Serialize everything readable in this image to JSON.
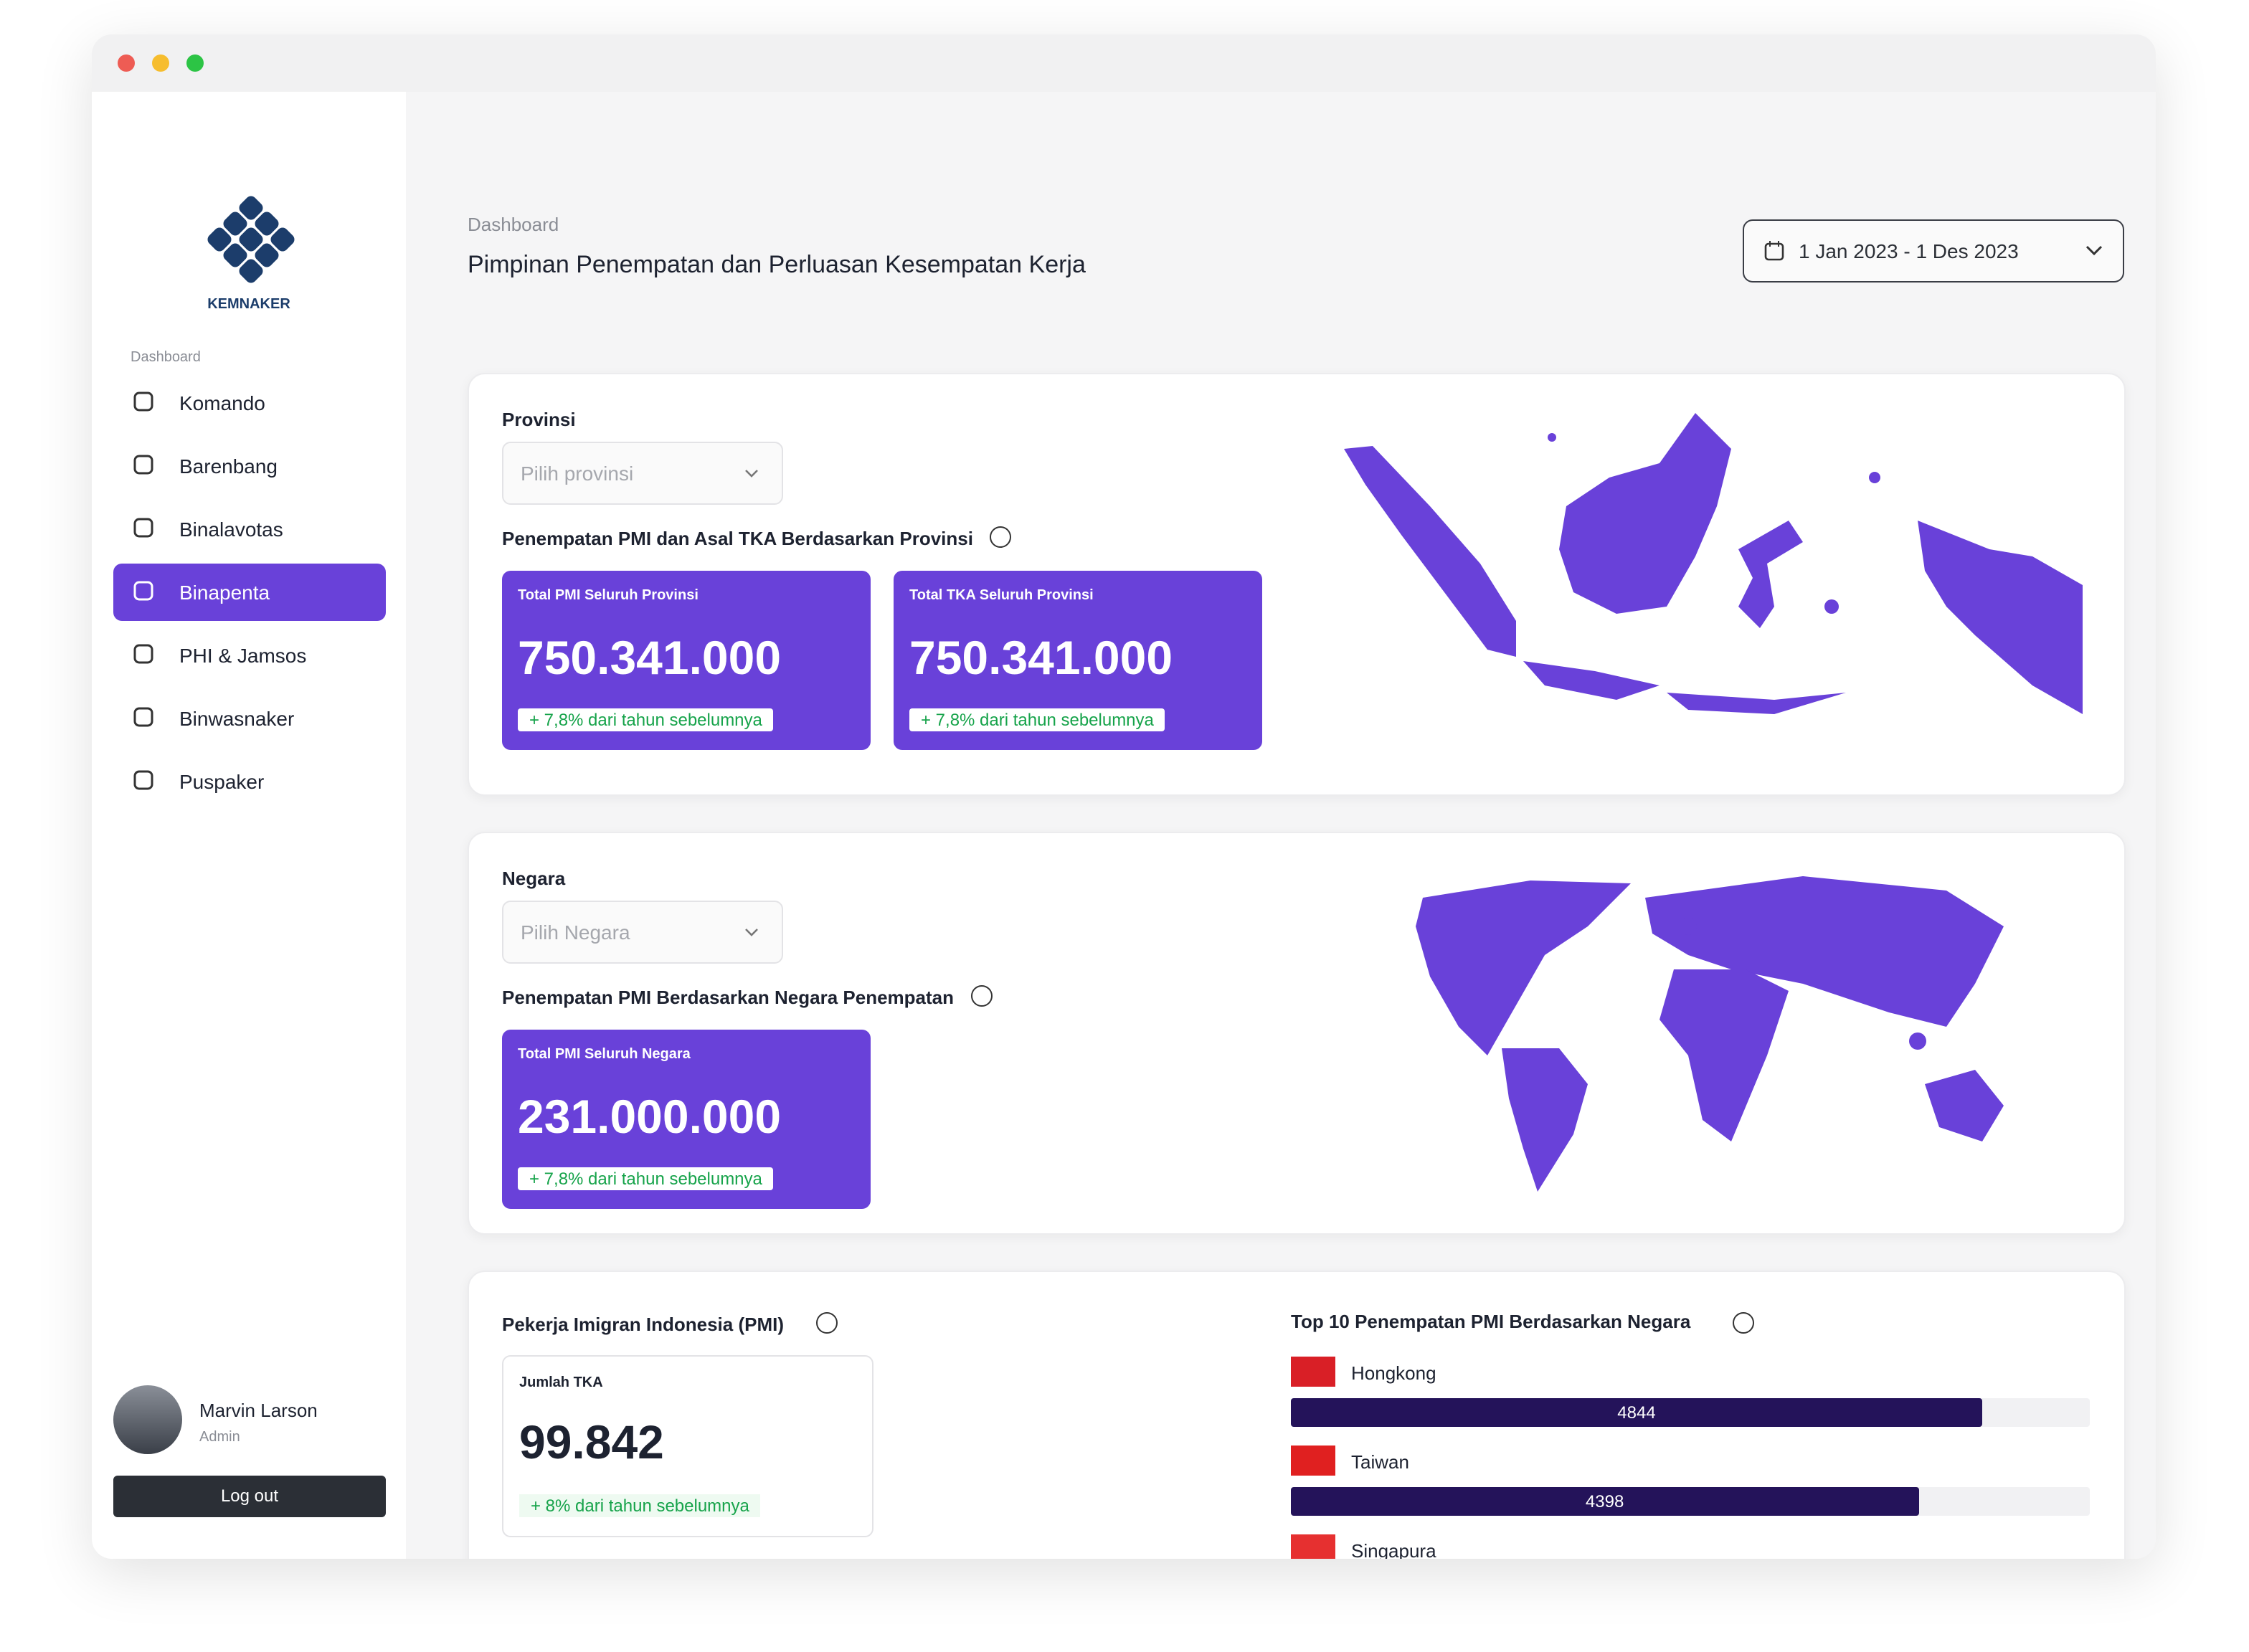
{
  "sidebar": {
    "brand": "KEMNAKER",
    "section": "Dashboard",
    "nav": [
      "Komando",
      "Barenbang",
      "Binalavotas",
      "Binapenta",
      "PHI & Jamsos",
      "Binwasnaker",
      "Puspaker"
    ],
    "active": 3,
    "user": {
      "name": "Marvin Larson",
      "role": "Admin"
    },
    "logout": "Log out"
  },
  "header": {
    "breadcrumb": "Dashboard",
    "title": "Pimpinan Penempatan dan Perluasan Kesempatan Kerja",
    "date_range": "1 Jan 2023 - 1 Des 2023"
  },
  "provinsi": {
    "label": "Provinsi",
    "placeholder": "Pilih provinsi",
    "title": "Penempatan PMI dan Asal TKA Berdasarkan Provinsi",
    "stats": [
      {
        "label": "Total PMI Seluruh Provinsi",
        "value": "750.341.000",
        "change": "+  7,8% dari tahun sebelumnya"
      },
      {
        "label": "Total TKA Seluruh Provinsi",
        "value": "750.341.000",
        "change": "+  7,8% dari tahun sebelumnya"
      }
    ]
  },
  "negara": {
    "label": "Negara",
    "placeholder": "Pilih Negara",
    "title": "Penempatan PMI Berdasarkan Negara Penempatan",
    "stats": [
      {
        "label": "Total PMI Seluruh Negara",
        "value": "231.000.000",
        "change": "+  7,8% dari tahun sebelumnya"
      }
    ]
  },
  "pmi": {
    "title": "Pekerja Imigran Indonesia (PMI)",
    "stat": {
      "label": "Jumlah TKA",
      "value": "99.842",
      "change": "+  8% dari tahun sebelumnya"
    }
  },
  "top10": {
    "title": "Top 10 Penempatan PMI Berdasarkan Negara",
    "countries": [
      {
        "name": "Hongkong",
        "value": 4844
      },
      {
        "name": "Taiwan",
        "value": 4398
      },
      {
        "name": "Singapura"
      }
    ]
  }
}
